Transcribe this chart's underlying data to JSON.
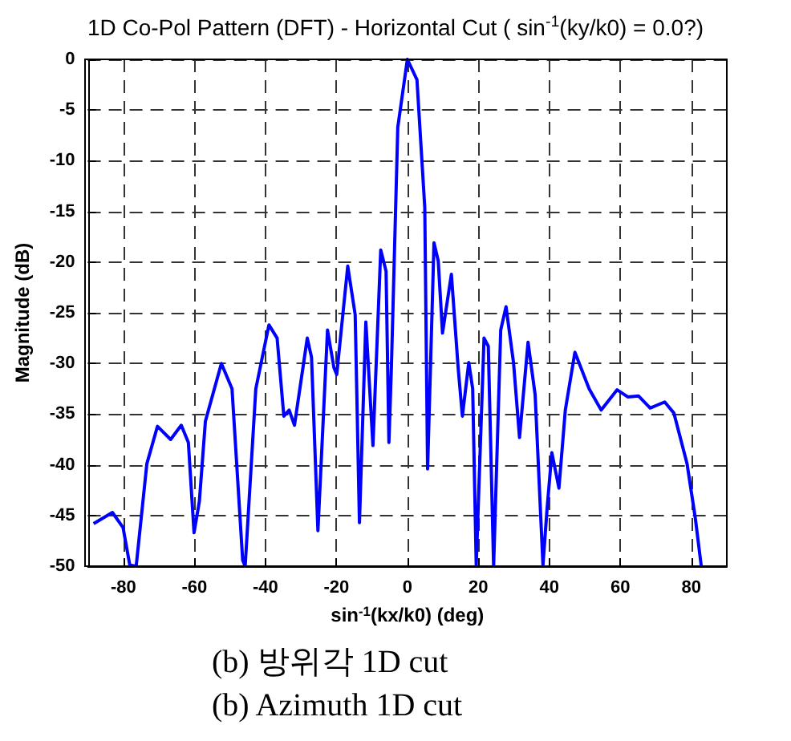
{
  "chart_data": {
    "type": "line",
    "title": "1D Co-Pol Pattern (DFT) - Horizontal Cut ( sin$^{-1}$(ky/k0) = 0.0?)",
    "xlabel": "sin$^{-1}$(kx/k0) (deg)",
    "ylabel": "Magnitude (dB)",
    "annotations": [
      "(b) 방위각 1D cut",
      "(b) Azimuth 1D cut"
    ],
    "xlim": [
      -90,
      90
    ],
    "xticks": [
      -80,
      -60,
      -40,
      -20,
      0,
      20,
      40,
      60,
      80
    ],
    "ylim": [
      -50,
      0
    ],
    "yticks": [
      -50,
      -45,
      -40,
      -35,
      -30,
      -25,
      -20,
      -15,
      -10,
      -5,
      0
    ],
    "grid": true,
    "marker": "none",
    "line_style": "solid",
    "series": [
      {
        "color": "#0000ff",
        "x": [
          -88.4,
          -83.1,
          -80.1,
          -78.2,
          -76.4,
          -73.4,
          -70.4,
          -66.7,
          -63.7,
          -61.7,
          -60.1,
          -58.6,
          -56.9,
          -52.4,
          -49.4,
          -46.4,
          -45.7,
          -42.7,
          -39,
          -36.7,
          -34.8,
          -33.3,
          -31.8,
          -28.2,
          -27,
          -25.2,
          -22.5,
          -20.7,
          -19.9,
          -16.8,
          -14.7,
          -13.5,
          -11.7,
          -9.7,
          -7.5,
          -6,
          -5.2,
          -4.5,
          -2.7,
          0,
          2.7,
          4.9,
          5.7,
          7.5,
          8.7,
          9.9,
          12.4,
          14.3,
          15.5,
          17.3,
          18.4,
          19.4,
          21.6,
          22.8,
          24.3,
          26.3,
          27.8,
          29.9,
          31.6,
          34,
          36,
          38.2,
          39.3,
          40.7,
          42.7,
          44.5,
          47.2,
          51.2,
          54.6,
          59.1,
          62.1,
          65.1,
          68.4,
          72.5,
          75.1,
          78.8,
          81.1,
          82.8
        ],
        "values": [
          -45.8,
          -44.7,
          -46.2,
          -49.9,
          -50,
          -39.9,
          -36.2,
          -37.5,
          -36.1,
          -37.8,
          -46.7,
          -43.6,
          -35.7,
          -30,
          -32.5,
          -49.4,
          -50,
          -32.5,
          -26.2,
          -27.5,
          -35.2,
          -34.6,
          -36.1,
          -27.5,
          -29.4,
          -46.5,
          -26.7,
          -30.4,
          -31.1,
          -20.4,
          -25.2,
          -45.7,
          -25.9,
          -38.1,
          -18.8,
          -20.9,
          -37.8,
          -30.4,
          -6.7,
          0,
          -2,
          -14.6,
          -40.4,
          -18.1,
          -19.9,
          -27,
          -21.2,
          -30.4,
          -35.2,
          -29.9,
          -32.5,
          -49.9,
          -27.5,
          -28.3,
          -50,
          -26.7,
          -24.4,
          -29.9,
          -37.3,
          -27.9,
          -33.1,
          -49.9,
          -44.6,
          -38.8,
          -42.3,
          -34.6,
          -28.9,
          -32.5,
          -34.6,
          -32.6,
          -33.3,
          -33.2,
          -34.4,
          -33.8,
          -34.9,
          -39.9,
          -45.2,
          -50
        ]
      }
    ]
  }
}
